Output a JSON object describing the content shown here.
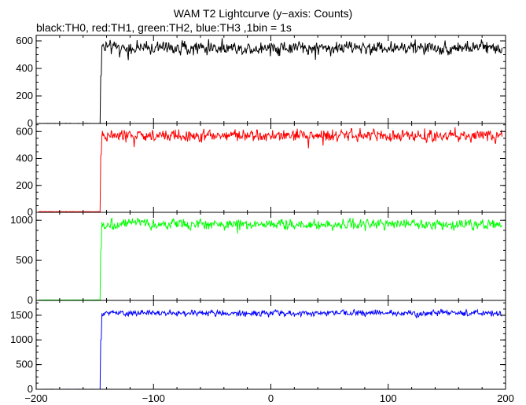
{
  "chart_data": {
    "type": "line",
    "title": "WAM T2 Lightcurve (y−axis: Counts)",
    "subtitle": "black:TH0, red:TH1, green:TH2, blue:TH3 ,1bin = 1s",
    "xlim": [
      -200,
      200
    ],
    "x_ticks": [
      -200,
      -100,
      0,
      100,
      200
    ],
    "x_tick_labels": [
      "−200",
      "−100",
      "0",
      "100",
      "200"
    ],
    "bin_seconds": 1,
    "x_start": -198,
    "x_end": 197,
    "panels": [
      {
        "name": "TH0",
        "color": "#000000",
        "ylim": [
          0,
          640
        ],
        "y_ticks": [
          0,
          200,
          400,
          600
        ],
        "y_tick_labels": [
          "0",
          "200",
          "400",
          "600"
        ],
        "pre_level": 0,
        "rise_time": -145,
        "rise_mid": 350,
        "post_level": 550,
        "noise": 24,
        "spikes": 7
      },
      {
        "name": "TH1",
        "color": "#ff0000",
        "ylim": [
          0,
          660
        ],
        "y_ticks": [
          0,
          200,
          400,
          600
        ],
        "y_tick_labels": [
          "0",
          "200",
          "400",
          "600"
        ],
        "pre_level": 5,
        "rise_time": -145,
        "rise_mid": 420,
        "post_level": 570,
        "noise": 22,
        "spikes": 8
      },
      {
        "name": "TH2",
        "color": "#00ff00",
        "ylim": [
          0,
          1100
        ],
        "y_ticks": [
          0,
          500,
          1000
        ],
        "y_tick_labels": [
          "0",
          "500",
          "1000"
        ],
        "pre_level": 5,
        "rise_time": -145,
        "rise_mid": 650,
        "post_level": 950,
        "noise": 32,
        "spikes": 5
      },
      {
        "name": "TH3",
        "color": "#0000ff",
        "ylim": [
          0,
          1800
        ],
        "y_ticks": [
          0,
          500,
          1000,
          1500
        ],
        "y_tick_labels": [
          "0",
          "500",
          "1000",
          "1500"
        ],
        "pre_level": 0,
        "rise_time": -145,
        "rise_mid": 1000,
        "post_level": 1540,
        "noise": 30,
        "spikes": 4
      }
    ]
  }
}
